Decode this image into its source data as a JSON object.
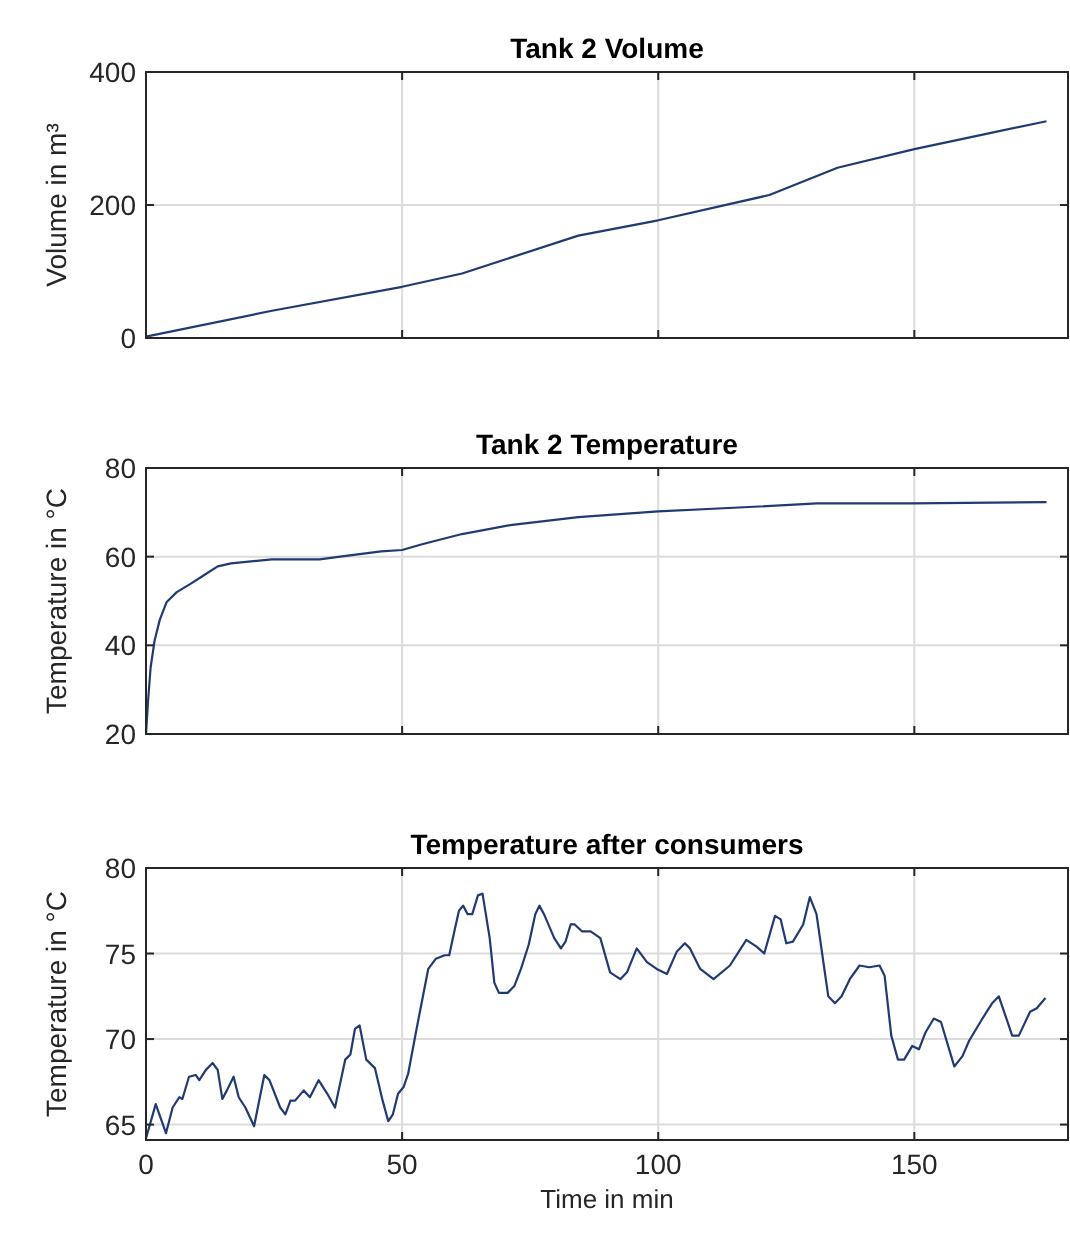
{
  "chart_data": [
    {
      "type": "line",
      "title": "Tank 2 Volume",
      "ylabel": "Volume in m³",
      "xlim": [
        0,
        180
      ],
      "ylim": [
        0,
        400
      ],
      "xticks": [
        0,
        50,
        100,
        150
      ],
      "yticks": [
        0,
        200,
        400
      ],
      "grid": true,
      "tick_labels": "y",
      "series": [
        {
          "color": "#203a72",
          "x": [
            0,
            24.6,
            50,
            61.7,
            84.4,
            100,
            121.7,
            135,
            150,
            162.9,
            175.8
          ],
          "values": [
            2,
            41,
            77,
            97,
            154,
            177,
            215,
            256,
            284,
            305,
            326
          ]
        }
      ]
    },
    {
      "type": "line",
      "title": "Tank 2 Temperature",
      "ylabel": "Temperature  in °C",
      "xlim": [
        0,
        180
      ],
      "ylim": [
        20,
        80
      ],
      "xticks": [
        0,
        50,
        100,
        150
      ],
      "yticks": [
        20,
        40,
        60,
        80
      ],
      "grid": true,
      "tick_labels": "y",
      "series": [
        {
          "color": "#203a72",
          "x": [
            0,
            0.4,
            0.9,
            1.7,
            2.7,
            4,
            6,
            8.6,
            11.3,
            14,
            16.6,
            24.6,
            33.9,
            37.9,
            45.9,
            50,
            53.9,
            61.7,
            71.1,
            84.4,
            100,
            117.7,
            131,
            150,
            175.8
          ],
          "values": [
            20,
            27.4,
            35,
            41.2,
            45.8,
            49.7,
            52,
            53.8,
            55.8,
            57.8,
            58.5,
            59.4,
            59.4,
            60,
            61.2,
            61.5,
            62.8,
            65.1,
            67.1,
            68.9,
            70.2,
            71.2,
            72,
            72,
            72.3
          ]
        }
      ]
    },
    {
      "type": "line",
      "title": "Temperature after consumers",
      "xlabel": "Time in min",
      "ylabel": "Temperature  in °C",
      "xlim": [
        0,
        180
      ],
      "ylim": [
        64.1,
        80
      ],
      "xticks": [
        0,
        50,
        100,
        150
      ],
      "yticks": [
        65,
        70,
        75,
        80
      ],
      "grid": true,
      "series": [
        {
          "color": "#203a72",
          "x": [
            0,
            1.9,
            3.9,
            5.2,
            6.5,
            7.1,
            8.4,
            9.7,
            10.4,
            11.7,
            13,
            14,
            14.9,
            15.8,
            17.1,
            18.1,
            19.4,
            21.1,
            23.1,
            24.1,
            26.2,
            27.2,
            28.2,
            29.1,
            30.8,
            32,
            33.7,
            35.4,
            36.9,
            38.9,
            39.9,
            40.8,
            41.7,
            43,
            44.7,
            46.2,
            47.3,
            48.2,
            49.2,
            50.3,
            51.2,
            52.7,
            55.1,
            56.6,
            58.3,
            59.2,
            60.2,
            61.1,
            61.9,
            62.8,
            63.7,
            64.8,
            65.7,
            67.1,
            68,
            68.9,
            70.6,
            71.9,
            73.2,
            74.7,
            76,
            76.8,
            77.7,
            79.7,
            81,
            81.9,
            82.9,
            83.7,
            85.1,
            86.8,
            88.7,
            90.6,
            92.6,
            93.9,
            95.8,
            97.8,
            99.7,
            101.7,
            103.6,
            105.2,
            106.2,
            108.2,
            110.8,
            114,
            117.2,
            119.2,
            120.7,
            122.8,
            123.9,
            125,
            126.3,
            128.3,
            129.6,
            130.9,
            133.2,
            134.5,
            135.8,
            137.4,
            139.3,
            141.2,
            143.2,
            144.2,
            145.5,
            146.8,
            148,
            149.6,
            150.9,
            152.2,
            153.8,
            155.2,
            156.8,
            157.8,
            159.4,
            160.7,
            163.3,
            165.2,
            166.5,
            168.2,
            169.1,
            170.4,
            172.6,
            173.9,
            175.6
          ],
          "values": [
            64.2,
            66.2,
            64.5,
            66,
            66.6,
            66.5,
            67.8,
            67.9,
            67.6,
            68.2,
            68.6,
            68.2,
            66.5,
            67,
            67.8,
            66.6,
            66,
            64.9,
            67.9,
            67.6,
            66,
            65.6,
            66.4,
            66.4,
            67,
            66.6,
            67.6,
            66.8,
            66,
            68.8,
            69.1,
            70.6,
            70.8,
            68.8,
            68.3,
            66.4,
            65.2,
            65.6,
            66.8,
            67.2,
            68,
            70.4,
            74.1,
            74.7,
            74.9,
            74.9,
            76.3,
            77.5,
            77.8,
            77.3,
            77.3,
            78.4,
            78.5,
            75.9,
            73.3,
            72.7,
            72.7,
            73.1,
            74.1,
            75.5,
            77.3,
            77.8,
            77.3,
            75.9,
            75.3,
            75.7,
            76.7,
            76.7,
            76.3,
            76.3,
            75.9,
            73.9,
            73.5,
            73.9,
            75.3,
            74.5,
            74.1,
            73.8,
            75.1,
            75.6,
            75.3,
            74.1,
            73.5,
            74.3,
            75.8,
            75.4,
            75,
            77.2,
            77,
            75.6,
            75.7,
            76.7,
            78.3,
            77.3,
            72.5,
            72.1,
            72.5,
            73.5,
            74.3,
            74.2,
            74.3,
            73.7,
            70.2,
            68.8,
            68.8,
            69.6,
            69.4,
            70.4,
            71.2,
            71,
            69.4,
            68.4,
            69,
            69.9,
            71.2,
            72.1,
            72.5,
            71,
            70.2,
            70.2,
            71.6,
            71.8,
            72.4
          ]
        }
      ]
    }
  ]
}
